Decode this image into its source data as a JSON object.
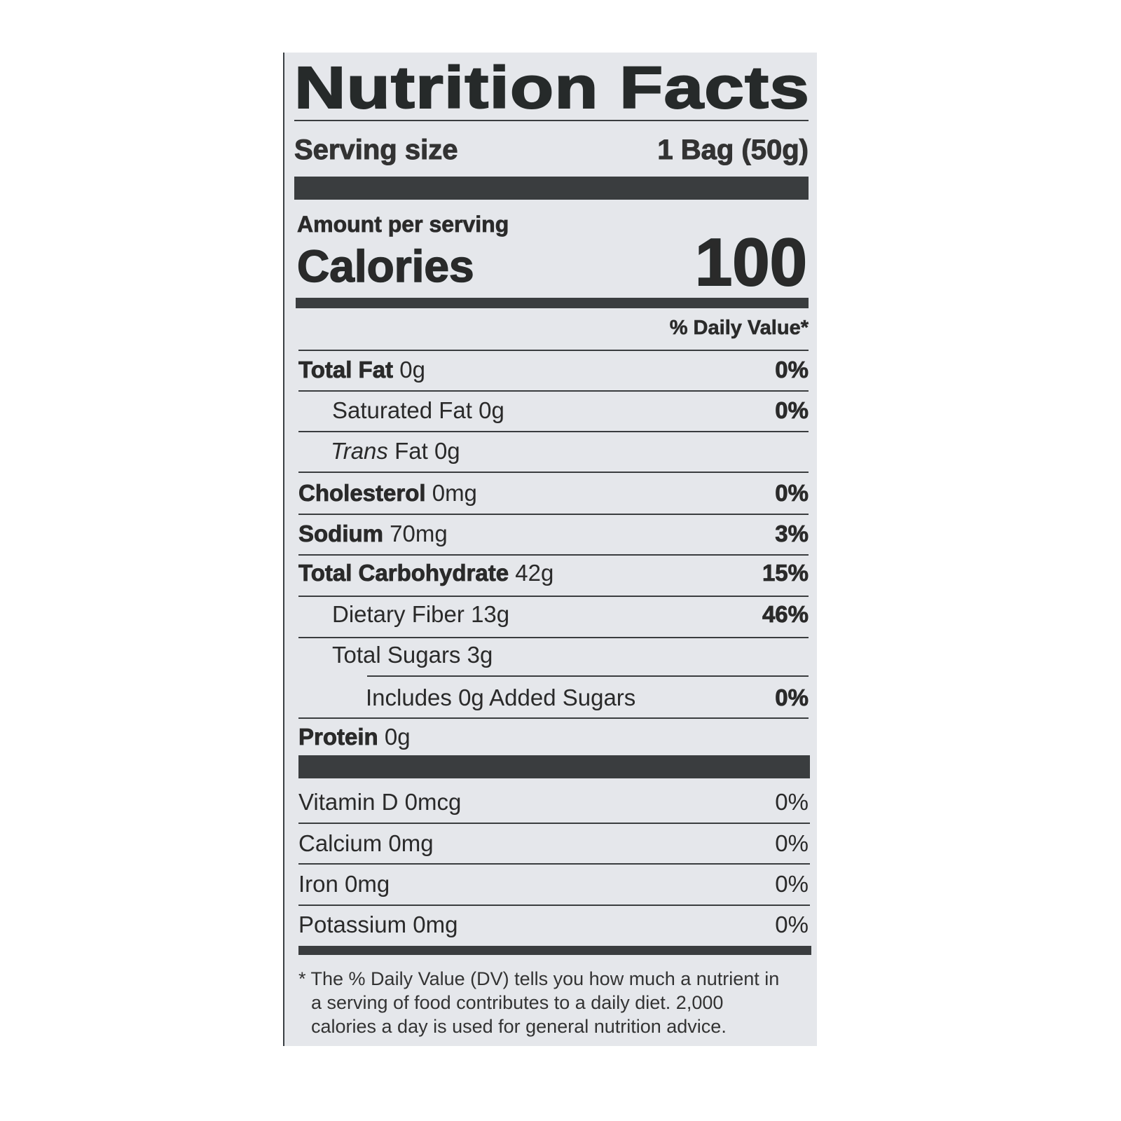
{
  "title": "Nutrition Facts",
  "serving": {
    "label": "Serving size",
    "value": "1 Bag (50g)"
  },
  "amount_per_serving": "Amount per serving",
  "calories": {
    "label": "Calories",
    "value": "100"
  },
  "daily_value_header": "% Daily Value*",
  "nutrients": [
    {
      "name": "Total Fat",
      "amount": "0g",
      "dv": "0%"
    },
    {
      "name": "Saturated Fat",
      "amount": "0g",
      "dv": "0%"
    },
    {
      "name": "Trans",
      "name_suffix": "Fat",
      "amount": "0g",
      "dv": ""
    },
    {
      "name": "Cholesterol",
      "amount": "0mg",
      "dv": "0%"
    },
    {
      "name": "Sodium",
      "amount": "70mg",
      "dv": "3%"
    },
    {
      "name": "Total Carbohydrate",
      "amount": "42g",
      "dv": "15%"
    },
    {
      "name": "Dietary Fiber",
      "amount": "13g",
      "dv": "46%"
    },
    {
      "name": "Total Sugars",
      "amount": "3g",
      "dv": ""
    },
    {
      "name": "Includes 0g Added Sugars",
      "amount": "",
      "dv": "0%"
    },
    {
      "name": "Protein",
      "amount": "0g",
      "dv": ""
    }
  ],
  "micronutrients": [
    {
      "name": "Vitamin D",
      "amount": "0mcg",
      "dv": "0%"
    },
    {
      "name": "Calcium",
      "amount": "0mg",
      "dv": "0%"
    },
    {
      "name": "Iron",
      "amount": "0mg",
      "dv": "0%"
    },
    {
      "name": "Potassium",
      "amount": "0mg",
      "dv": "0%"
    }
  ],
  "footnote": [
    "* The % Daily Value (DV) tells you how much a nutrient in",
    "a serving of food contributes to a daily diet. 2,000",
    "calories a day is used for general nutrition advice."
  ],
  "colors": {
    "label_bg": "#e5e7eb",
    "ink": "#2a2a2a"
  }
}
